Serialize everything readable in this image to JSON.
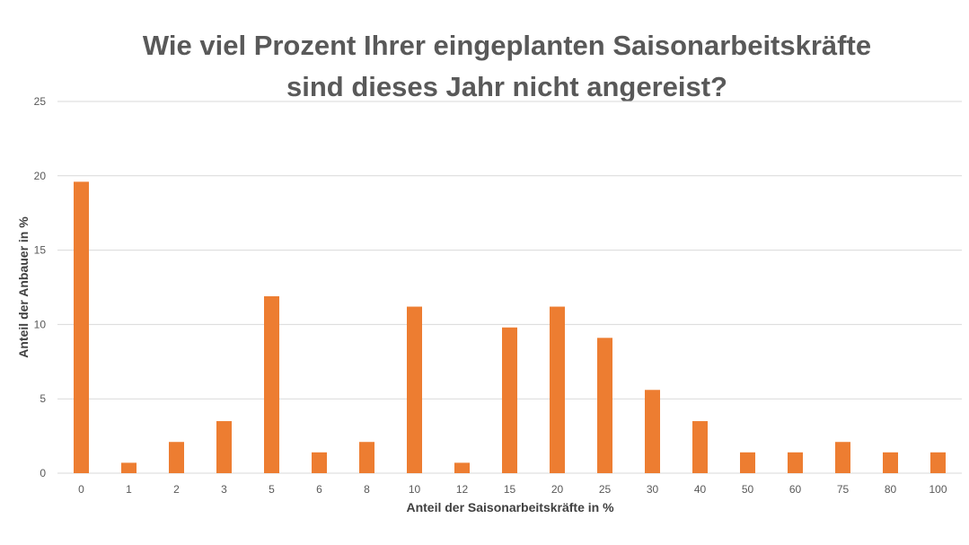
{
  "chart_data": {
    "type": "bar",
    "title_line1": "Wie viel Prozent Ihrer eingeplanten Saisonarbeitskräfte",
    "title_line2": "sind dieses Jahr nicht angereist?",
    "xlabel": "Anteil der Saisonarbeitskräfte in %",
    "ylabel": "Anteil der Anbauer in %",
    "categories": [
      "0",
      "1",
      "2",
      "3",
      "5",
      "6",
      "8",
      "10",
      "12",
      "15",
      "20",
      "25",
      "30",
      "40",
      "50",
      "60",
      "75",
      "80",
      "100"
    ],
    "values": [
      19.6,
      0.7,
      2.1,
      3.5,
      11.9,
      1.4,
      2.1,
      11.2,
      0.7,
      9.8,
      11.2,
      9.1,
      5.6,
      3.5,
      1.4,
      1.4,
      2.1,
      1.4,
      1.4
    ],
    "ylim": [
      0,
      25
    ],
    "yticks": [
      0,
      5,
      10,
      15,
      20,
      25
    ],
    "grid": true,
    "bar_color": "#ED7D31",
    "grid_color": "#D9D9D9"
  }
}
